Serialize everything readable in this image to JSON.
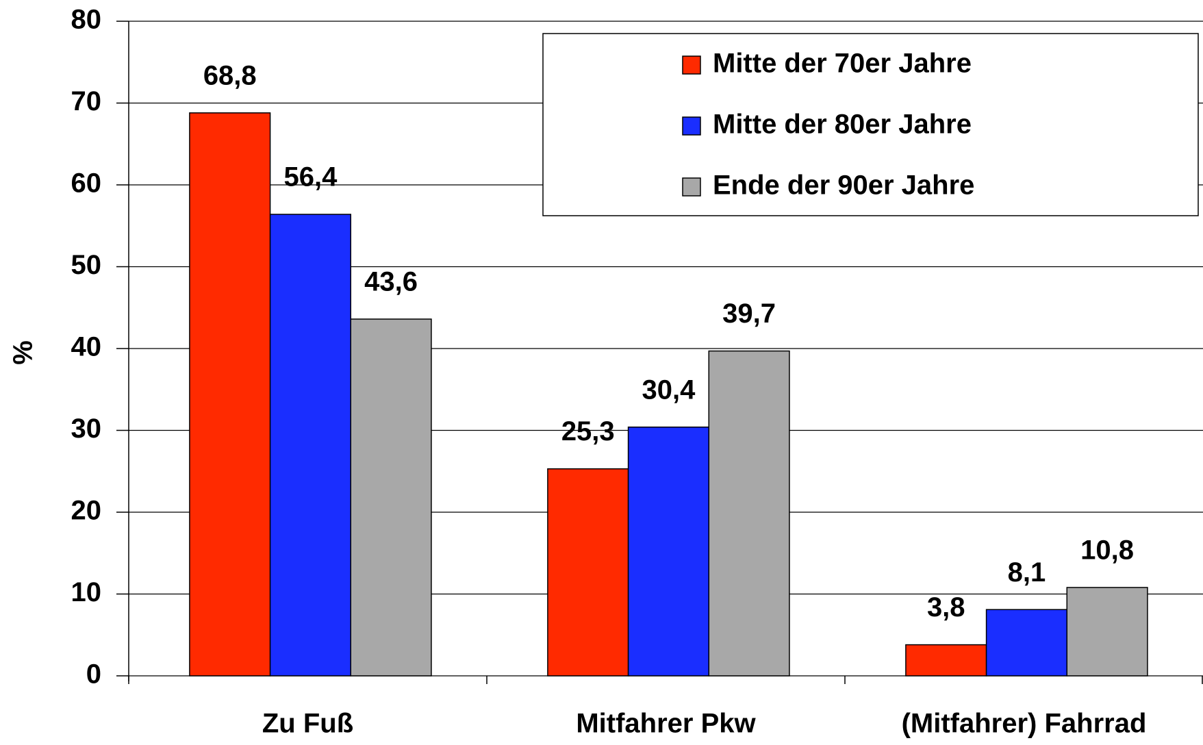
{
  "chart_data": {
    "type": "bar",
    "y_label": "%",
    "categories": [
      "Zu Fuß",
      "Mitfahrer Pkw",
      "(Mitfahrer) Fahrrad"
    ],
    "series": [
      {
        "name": "Mitte der 70er Jahre",
        "color": "#ff2a00",
        "values": [
          68.8,
          25.3,
          3.8
        ],
        "value_labels": [
          "68,8",
          "25,3",
          "3,8"
        ]
      },
      {
        "name": "Mitte der 80er Jahre",
        "color": "#1a2eff",
        "values": [
          56.4,
          30.4,
          8.1
        ],
        "value_labels": [
          "56,4",
          "30,4",
          "8,1"
        ]
      },
      {
        "name": "Ende der 90er Jahre",
        "color": "#a8a8a8",
        "values": [
          43.6,
          39.7,
          10.8
        ],
        "value_labels": [
          "43,6",
          "39,7",
          "10,8"
        ]
      }
    ],
    "ylim": [
      0,
      80
    ],
    "yticks": [
      0,
      10,
      20,
      30,
      40,
      50,
      60,
      70,
      80
    ],
    "grid": true,
    "legend": "upper right"
  }
}
